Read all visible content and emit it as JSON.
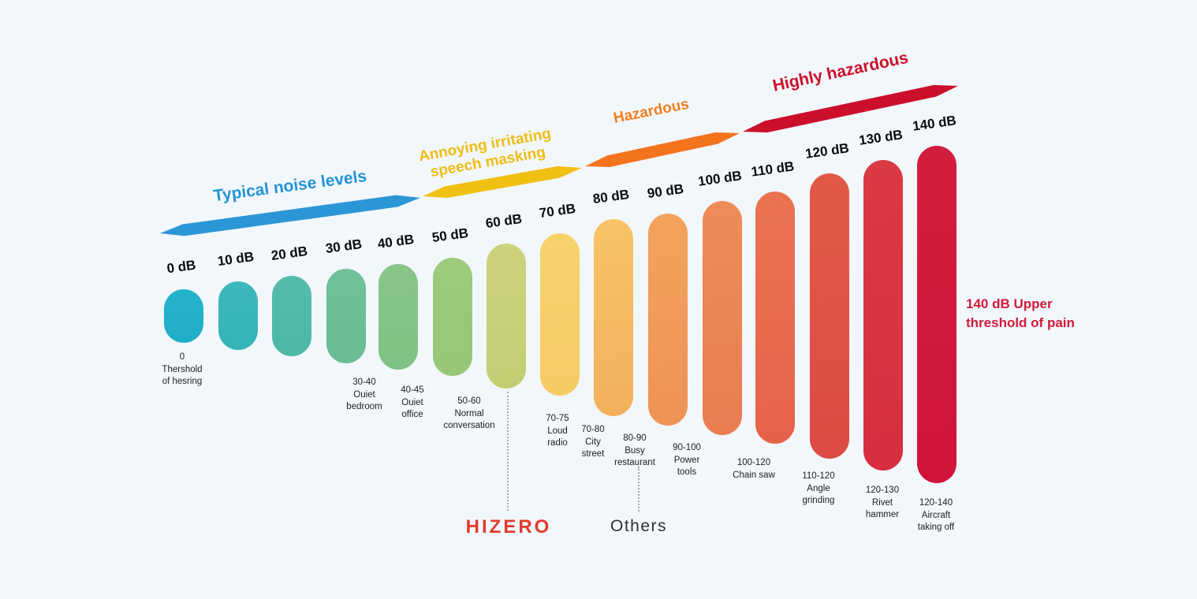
{
  "background": "#F2F7FC",
  "zones": [
    {
      "name": "typical",
      "lines": [
        "Typical noise levels"
      ],
      "color": "#2B96D6",
      "text_color": "#2493D6"
    },
    {
      "name": "annoying",
      "lines": [
        "Annoying irritating",
        "speech masking"
      ],
      "color": "#F0C011",
      "text_color": "#EFBC13"
    },
    {
      "name": "hazardous",
      "lines": [
        "Hazardous"
      ],
      "color": "#F4731D",
      "text_color": "#F57E1D"
    },
    {
      "name": "highly-hazardous",
      "lines": [
        "Highly hazardous"
      ],
      "color": "#CB0F2B",
      "text_color": "#CC1028"
    }
  ],
  "bars": [
    {
      "db_label": "0 dB",
      "value": 0,
      "colors": [
        "#25B3CB",
        "#1FAEC6"
      ],
      "caption": [
        "0",
        "Thershold",
        "of hesring"
      ]
    },
    {
      "db_label": "10 dB",
      "value": 10,
      "colors": [
        "#3CB8BC",
        "#35B3B8"
      ],
      "caption": []
    },
    {
      "db_label": "20 dB",
      "value": 20,
      "colors": [
        "#55BCAA",
        "#4DB8A5"
      ],
      "caption": []
    },
    {
      "db_label": "30 dB",
      "value": 30,
      "colors": [
        "#70C198",
        "#68BD92"
      ],
      "caption": [
        "30-40",
        "Ouiet",
        "bedroom"
      ]
    },
    {
      "db_label": "40 dB",
      "value": 40,
      "colors": [
        "#88C589",
        "#80C283"
      ],
      "caption": [
        "40-45",
        "Ouiet",
        "office"
      ]
    },
    {
      "db_label": "50 dB",
      "value": 50,
      "colors": [
        "#9ECA7C",
        "#96C777"
      ],
      "caption": [
        "50-60",
        "Normal",
        "conversation"
      ]
    },
    {
      "db_label": "60 dB",
      "value": 60,
      "colors": [
        "#CDD37D",
        "#C2CD72"
      ],
      "caption": []
    },
    {
      "db_label": "70 dB",
      "value": 70,
      "colors": [
        "#F7D26A",
        "#F5CB64"
      ],
      "caption": [
        "70-75",
        "Loud",
        "radio"
      ]
    },
    {
      "db_label": "80 dB",
      "value": 80,
      "colors": [
        "#F8C365",
        "#F3B05C"
      ],
      "caption": [
        "70-80",
        "City",
        "street"
      ]
    },
    {
      "db_label": "90 dB",
      "value": 90,
      "colors": [
        "#F3A35D",
        "#EE9355"
      ],
      "caption": [
        "80-90",
        "Busy",
        "restaurant"
      ]
    },
    {
      "db_label": "100 dB",
      "value": 100,
      "colors": [
        "#EF8C57",
        "#EA7D4F"
      ],
      "caption": [
        "90-100",
        "Power",
        "tools"
      ]
    },
    {
      "db_label": "110 dB",
      "value": 110,
      "colors": [
        "#EA7451",
        "#E5624A"
      ],
      "caption": [
        "100-120",
        "Chain saw"
      ]
    },
    {
      "db_label": "120 dB",
      "value": 120,
      "colors": [
        "#E25948",
        "#DE4A44"
      ],
      "caption": [
        "110-120",
        "Angle",
        "grinding"
      ]
    },
    {
      "db_label": "130 dB",
      "value": 130,
      "colors": [
        "#DA3A43",
        "#D62F40"
      ],
      "caption": [
        "120-130",
        "Rivet",
        "hammer"
      ]
    },
    {
      "db_label": "140 dB",
      "value": 140,
      "colors": [
        "#D31D3E",
        "#D0133A"
      ],
      "caption": [
        "120-140",
        "Aircraft",
        "taking off"
      ]
    }
  ],
  "callouts": {
    "hizero": {
      "label": "HIZERO",
      "color": "#E23B2B",
      "points_to": "60 dB"
    },
    "others": {
      "label": "Others",
      "color": "#2F2F2F",
      "points_to": "80-90 Busy restaurant"
    }
  },
  "side_note": {
    "lines": [
      "140 dB Upper",
      "threshold of pain"
    ],
    "color": "#D21A38"
  },
  "chart_data": {
    "type": "bar",
    "title": "",
    "xlabel": "",
    "ylabel": "",
    "categories": [
      "0 dB",
      "10 dB",
      "20 dB",
      "30 dB",
      "40 dB",
      "50 dB",
      "60 dB",
      "70 dB",
      "80 dB",
      "90 dB",
      "100 dB",
      "110 dB",
      "120 dB",
      "130 dB",
      "140 dB"
    ],
    "values": [
      0,
      10,
      20,
      30,
      40,
      50,
      60,
      70,
      80,
      90,
      100,
      110,
      120,
      130,
      140
    ],
    "ylim": [
      0,
      140
    ],
    "grid": false,
    "legend_position": "none",
    "zones": [
      {
        "label": "Typical noise levels",
        "covers_db": [
          0,
          50
        ]
      },
      {
        "label": "Annoying irritating speech masking",
        "covers_db": [
          50,
          70
        ]
      },
      {
        "label": "Hazardous",
        "covers_db": [
          80,
          100
        ]
      },
      {
        "label": "Highly hazardous",
        "covers_db": [
          110,
          140
        ]
      }
    ],
    "annotations": [
      {
        "bar": "0 dB",
        "text": "0 Thershold of hesring"
      },
      {
        "bar": "30 dB",
        "text": "30-40 Ouiet bedroom"
      },
      {
        "bar": "40 dB",
        "text": "40-45 Ouiet office"
      },
      {
        "bar": "50 dB",
        "text": "50-60 Normal conversation"
      },
      {
        "bar": "60 dB",
        "text": "HIZERO"
      },
      {
        "bar": "70 dB",
        "text": "70-75 Loud radio"
      },
      {
        "bar": "80 dB",
        "text": "70-80 City street"
      },
      {
        "bar": "90 dB",
        "text": "80-90 Busy restaurant / Others"
      },
      {
        "bar": "100 dB",
        "text": "90-100 Power tools"
      },
      {
        "bar": "110 dB",
        "text": "100-120 Chain saw"
      },
      {
        "bar": "120 dB",
        "text": "110-120 Angle grinding"
      },
      {
        "bar": "130 dB",
        "text": "120-130 Rivet hammer"
      },
      {
        "bar": "140 dB",
        "text": "120-140 Aircraft taking off"
      },
      {
        "bar": "140 dB",
        "text": "140 dB Upper threshold of pain"
      }
    ]
  }
}
